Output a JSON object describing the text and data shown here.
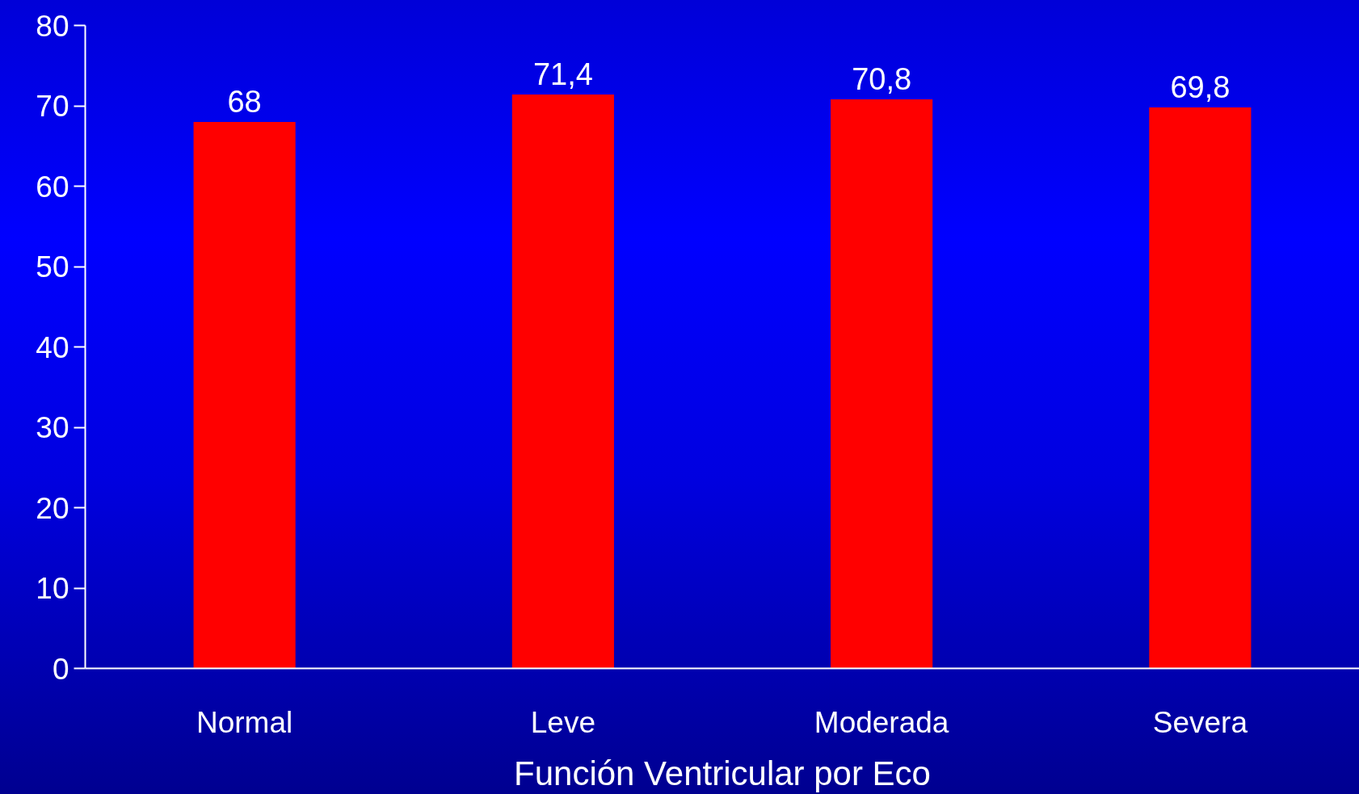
{
  "chart_data": {
    "type": "bar",
    "xlabel": "Función Ventricular por Eco",
    "categories": [
      "Normal",
      "Leve",
      "Moderada",
      "Severa"
    ],
    "values": [
      68,
      71.4,
      70.8,
      69.8
    ],
    "color": "#ff0000",
    "value_labels": [
      "68",
      "71,4",
      "70,8",
      "69,8"
    ],
    "ylim": [
      0,
      80
    ],
    "yticks": [
      0,
      10,
      20,
      30,
      40,
      50,
      60,
      70,
      80
    ]
  }
}
